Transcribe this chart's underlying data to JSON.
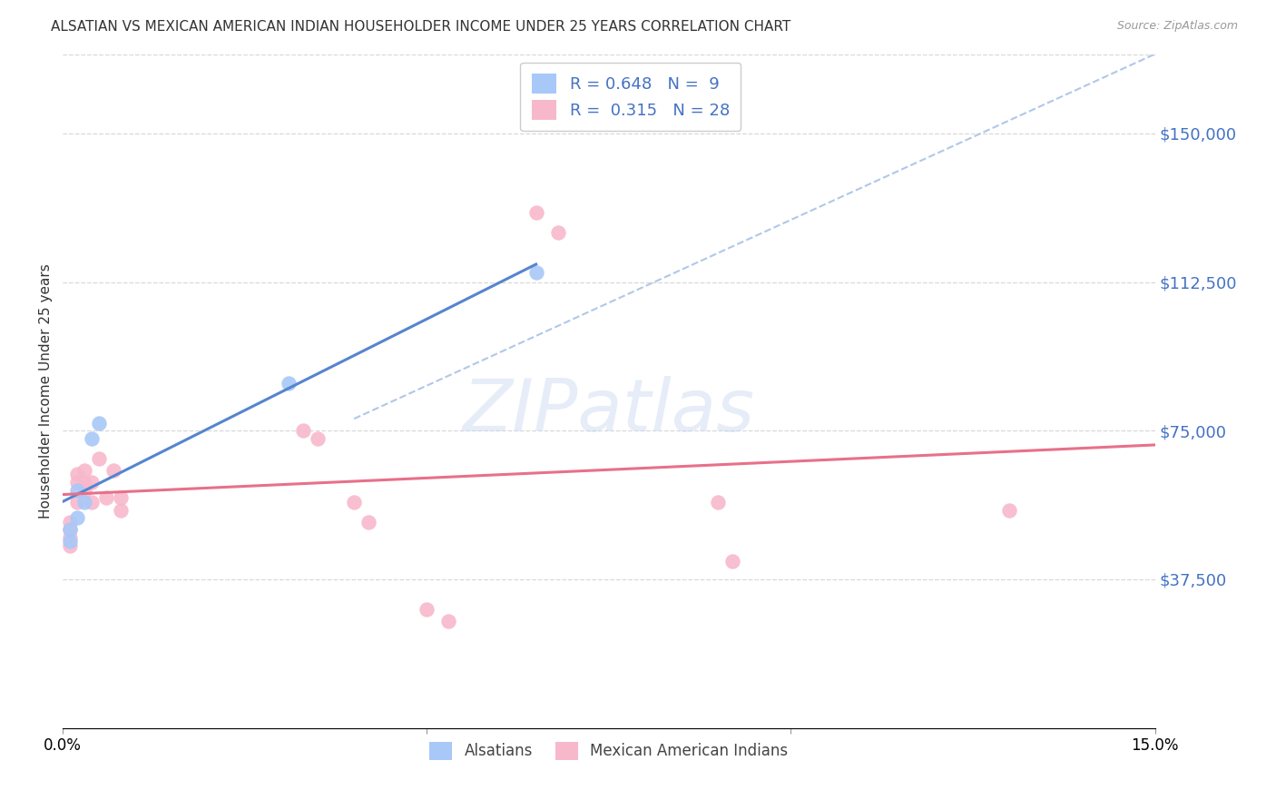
{
  "title": "ALSATIAN VS MEXICAN AMERICAN INDIAN HOUSEHOLDER INCOME UNDER 25 YEARS CORRELATION CHART",
  "source": "Source: ZipAtlas.com",
  "ylabel": "Householder Income Under 25 years",
  "xlim": [
    0,
    0.15
  ],
  "ylim": [
    0,
    170000
  ],
  "xticks": [
    0.0,
    0.05,
    0.1,
    0.15
  ],
  "xtick_labels": [
    "0.0%",
    "",
    "",
    "15.0%"
  ],
  "ytick_values": [
    0,
    37500,
    75000,
    112500,
    150000
  ],
  "ytick_labels": [
    "",
    "$37,500",
    "$75,000",
    "$112,500",
    "$150,000"
  ],
  "background_color": "#ffffff",
  "watermark": "ZIPatlas",
  "alsatian_color": "#a8c8f8",
  "mexican_color": "#f8b8cc",
  "alsatian_line_color": "#5585d0",
  "mexican_line_color": "#e8708a",
  "alsatian_R": 0.648,
  "alsatian_N": 9,
  "mexican_R": 0.315,
  "mexican_N": 28,
  "alsatian_x": [
    0.001,
    0.001,
    0.002,
    0.002,
    0.003,
    0.004,
    0.005,
    0.031,
    0.065
  ],
  "alsatian_y": [
    50000,
    47000,
    60000,
    53000,
    57000,
    73000,
    77000,
    87000,
    115000
  ],
  "mexican_x": [
    0.001,
    0.001,
    0.001,
    0.001,
    0.002,
    0.002,
    0.002,
    0.003,
    0.003,
    0.003,
    0.004,
    0.004,
    0.005,
    0.006,
    0.007,
    0.008,
    0.008,
    0.033,
    0.035,
    0.04,
    0.042,
    0.05,
    0.053,
    0.065,
    0.068,
    0.09,
    0.092,
    0.13
  ],
  "mexican_y": [
    50000,
    52000,
    48000,
    46000,
    62000,
    64000,
    57000,
    60000,
    62000,
    65000,
    62000,
    57000,
    68000,
    58000,
    65000,
    55000,
    58000,
    75000,
    73000,
    57000,
    52000,
    30000,
    27000,
    130000,
    125000,
    57000,
    42000,
    55000
  ],
  "title_fontsize": 11,
  "axis_label_color": "#4472c4",
  "legend_text_color": "#4472c4",
  "grid_color": "#d8d8d8",
  "dashed_line_color": "#b0c8e8"
}
